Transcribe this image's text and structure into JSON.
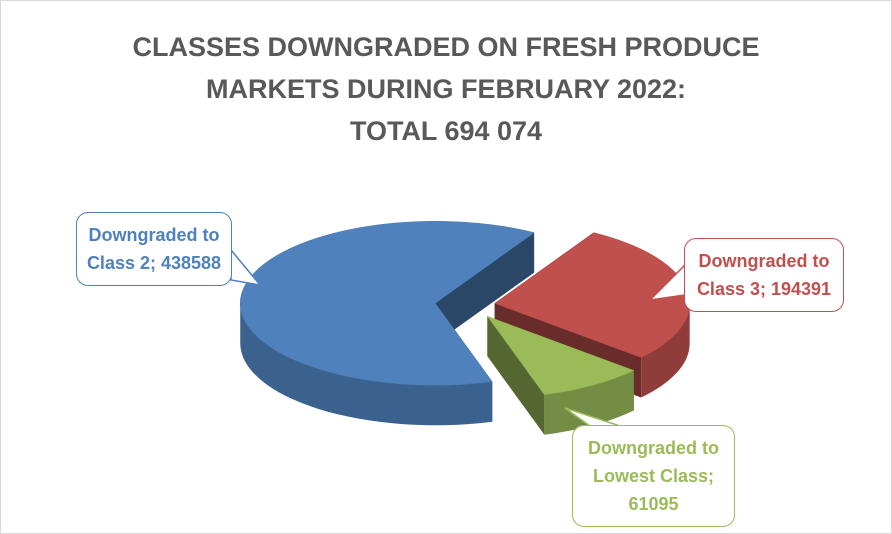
{
  "chart_data": {
    "type": "pie",
    "title": "CLASSES DOWNGRADED ON FRESH PRODUCE\nMARKETS DURING FEBRUARY 2022:\nTOTAL 694 074",
    "values": [
      438588,
      194391,
      61095
    ],
    "value_labels": [
      "Downgraded to Class 2; 438588",
      "Downgraded to Class 3; 194391",
      "Downgraded to Lowest Class; 61095"
    ],
    "colors": [
      "#4f81bd",
      "#c0504d",
      "#9bbb59"
    ]
  }
}
